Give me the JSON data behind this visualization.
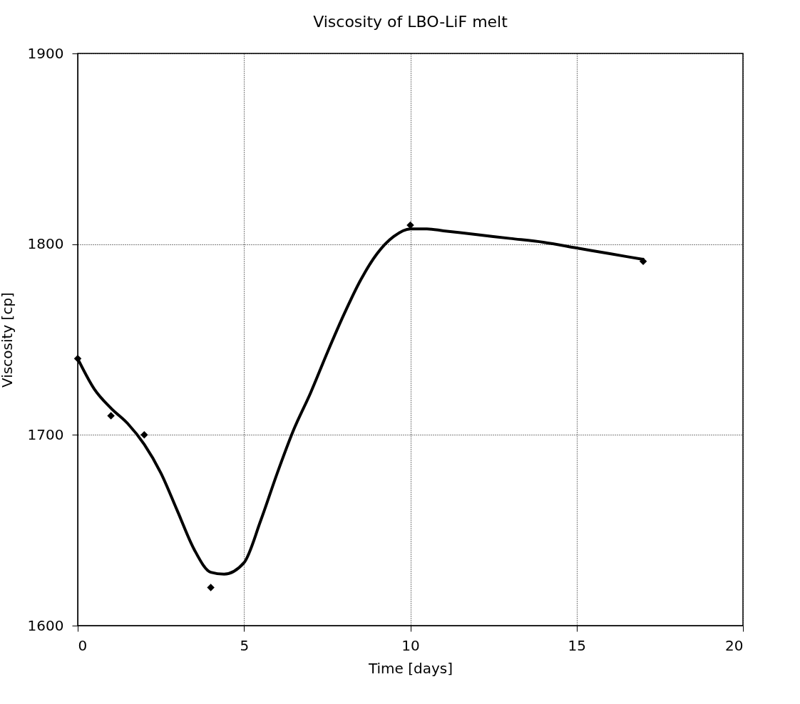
{
  "chart_data": {
    "type": "scatter",
    "title": "Viscosity of LBO-LiF melt",
    "xlabel": "Time [days]",
    "ylabel": "Viscosity [cp]",
    "xlim": [
      0,
      20
    ],
    "ylim": [
      1600,
      1900
    ],
    "xticks": [
      0,
      5,
      10,
      15,
      20
    ],
    "yticks": [
      1600,
      1700,
      1800,
      1900
    ],
    "grid": true,
    "series": [
      {
        "color": "#000000",
        "marker": "diamond",
        "x": [
          0,
          1,
          2,
          4,
          10,
          17
        ],
        "values": [
          1740,
          1710,
          1700,
          1620,
          1810,
          1791
        ]
      },
      {
        "type": "line",
        "color": "#000000",
        "marker": "none",
        "line_style": "solid",
        "x": [
          0,
          0.5,
          1,
          1.5,
          2,
          2.5,
          3,
          3.5,
          4,
          4.4,
          5,
          5.5,
          6,
          6.5,
          7,
          7.5,
          8,
          8.5,
          9,
          9.5,
          10,
          10.5,
          11,
          12,
          13,
          14,
          15,
          16,
          17
        ],
        "values": [
          1740,
          1724,
          1714,
          1706,
          1695,
          1680,
          1660,
          1640,
          1628,
          1627,
          1633,
          1655,
          1680,
          1703,
          1722,
          1743,
          1763,
          1781,
          1795,
          1804,
          1808,
          1808,
          1807,
          1805,
          1803,
          1801,
          1798,
          1795,
          1792
        ]
      }
    ]
  }
}
